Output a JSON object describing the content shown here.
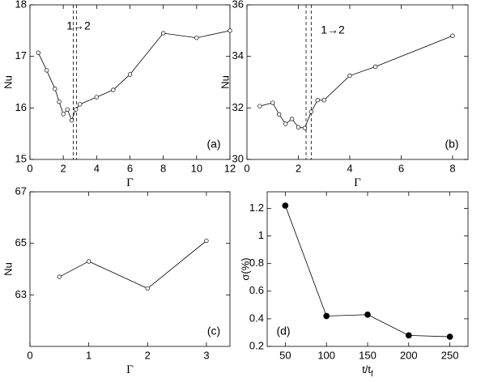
{
  "chart_data": [
    {
      "type": "line",
      "xlabel": "Γ",
      "ylabel": "Nu",
      "panel_label": "(a)",
      "annotation": "1→2",
      "x": [
        0.5,
        1,
        1.5,
        1.75,
        2,
        2.25,
        2.5,
        2.75,
        3,
        4,
        5,
        6,
        8,
        10,
        12
      ],
      "values": [
        17.07,
        16.73,
        16.37,
        16.12,
        15.88,
        15.97,
        15.76,
        15.97,
        16.07,
        16.21,
        16.35,
        16.65,
        17.45,
        17.36,
        17.5
      ],
      "vlines": [
        2.6,
        2.8
      ],
      "marker": "open",
      "color": "#000000",
      "xlim": [
        0,
        12
      ],
      "xticks": [
        0,
        2,
        4,
        6,
        8,
        10,
        12
      ],
      "ylim": [
        15,
        18
      ],
      "yticks": [
        15,
        16,
        17,
        18
      ]
    },
    {
      "type": "line",
      "xlabel": "Γ",
      "ylabel": "Nu",
      "panel_label": "(b)",
      "annotation": "1→2",
      "x": [
        0.5,
        1,
        1.25,
        1.5,
        1.75,
        2,
        2.25,
        2.5,
        2.75,
        3,
        4,
        5,
        8
      ],
      "values": [
        32.07,
        32.2,
        31.75,
        31.38,
        31.57,
        31.25,
        31.22,
        31.85,
        32.3,
        32.3,
        33.25,
        33.6,
        34.8
      ],
      "vlines": [
        2.3,
        2.5
      ],
      "marker": "open",
      "color": "#000000",
      "xlim": [
        0,
        8.6
      ],
      "xticks": [
        0,
        2,
        4,
        6,
        8
      ],
      "ylim": [
        30,
        36
      ],
      "yticks": [
        30,
        32,
        34,
        36
      ]
    },
    {
      "type": "line",
      "xlabel": "Γ",
      "ylabel": "Nu",
      "panel_label": "(c)",
      "x": [
        0.5,
        1,
        2,
        3
      ],
      "values": [
        63.7,
        64.3,
        63.25,
        65.1
      ],
      "marker": "open",
      "color": "#000000",
      "xlim": [
        0,
        3.4
      ],
      "xticks": [
        0,
        1,
        2,
        3
      ],
      "ylim": [
        61,
        67
      ],
      "yticks": [
        63,
        65,
        67
      ]
    },
    {
      "type": "line",
      "xlabel": "t/t",
      "xlabel_subscript": "f",
      "ylabel": "σ(%)",
      "panel_label": "(d)",
      "x": [
        50,
        100,
        150,
        200,
        250
      ],
      "values": [
        1.22,
        0.42,
        0.43,
        0.28,
        0.27
      ],
      "marker": "filled",
      "color": "#000000",
      "xlim": [
        28,
        272
      ],
      "xticks": [
        50,
        100,
        150,
        200,
        250
      ],
      "ylim": [
        0.2,
        1.32
      ],
      "yticks": [
        0.2,
        0.4,
        0.6,
        0.8,
        1,
        1.2
      ]
    }
  ]
}
